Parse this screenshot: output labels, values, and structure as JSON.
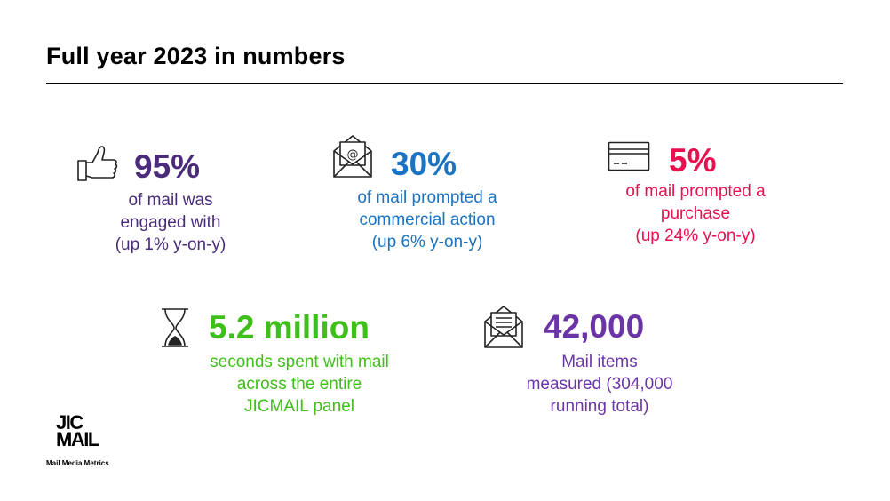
{
  "title": "Full year 2023 in numbers",
  "colors": {
    "engaged": "#4a2c7a",
    "commercial": "#1a73c4",
    "purchase": "#e8104f",
    "seconds": "#3fbf1a",
    "items": "#6b35a8"
  },
  "stats": [
    {
      "icon": "thumbs-up-icon",
      "value": "95%",
      "desc": [
        "of mail was",
        "engaged with",
        "(up 1% y-on-y)"
      ]
    },
    {
      "icon": "email-envelope-icon",
      "value": "30%",
      "desc": [
        "of mail prompted a",
        "commercial action",
        "(up 6% y-on-y)"
      ]
    },
    {
      "icon": "credit-card-icon",
      "value": "5%",
      "desc": [
        "of mail prompted a",
        "purchase",
        "(up 24% y-on-y)"
      ]
    },
    {
      "icon": "hourglass-icon",
      "value": "5.2 million",
      "desc": [
        "seconds spent with mail",
        "across the entire",
        "JICMAIL panel"
      ]
    },
    {
      "icon": "open-letter-icon",
      "value": "42,000",
      "desc": [
        "Mail items",
        "measured (304,000",
        "running total)"
      ]
    }
  ],
  "logo": {
    "line1": "JIC",
    "line2": "MAIL",
    "tagline": "Mail Media Metrics"
  }
}
